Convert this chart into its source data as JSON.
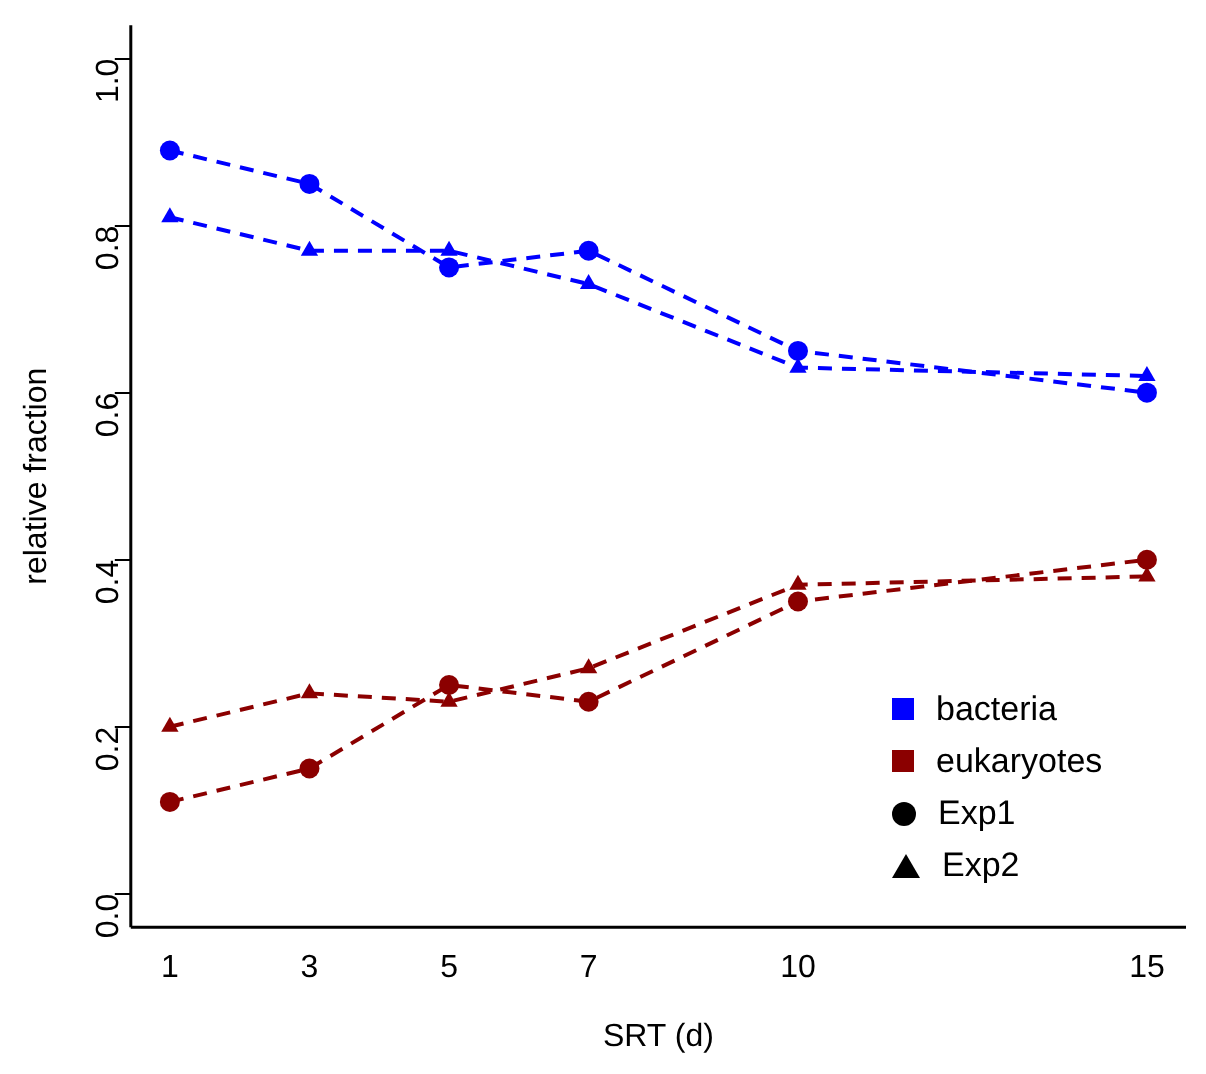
{
  "chart_data": {
    "type": "line",
    "xlabel": "SRT (d)",
    "ylabel": "relative fraction",
    "x": [
      1,
      3,
      5,
      7,
      10,
      15
    ],
    "xlim": [
      0.44,
      15.56
    ],
    "xticks": [
      1,
      3,
      5,
      7,
      10,
      15
    ],
    "ylim": [
      -0.04,
      1.04
    ],
    "yticks": [
      {
        "value": 0,
        "label": "0.0"
      },
      0.2,
      0.4,
      0.6,
      0.8,
      {
        "value": 1,
        "label": "1.0"
      }
    ],
    "series": [
      {
        "name": "bacteria",
        "color": "#0000ff",
        "marker": "circle",
        "values": [
          0.89,
          0.85,
          0.75,
          0.77,
          0.65,
          0.6
        ]
      },
      {
        "color": "#0000ff",
        "marker": "triangle",
        "values": [
          0.81,
          0.77,
          0.77,
          0.73,
          0.63,
          0.62
        ]
      },
      {
        "name": "eukaryotes",
        "color": "#8b0000",
        "marker": "circle",
        "values": [
          0.11,
          0.15,
          0.25,
          0.23,
          0.35,
          0.4
        ]
      },
      {
        "color": "#8b0000",
        "marker": "triangle",
        "values": [
          0.2,
          0.24,
          0.23,
          0.27,
          0.37,
          0.38
        ]
      }
    ],
    "line_style": "dashed",
    "grid": false,
    "legend": "bottom right",
    "annotations": [
      "Exp1",
      "Exp2"
    ]
  }
}
